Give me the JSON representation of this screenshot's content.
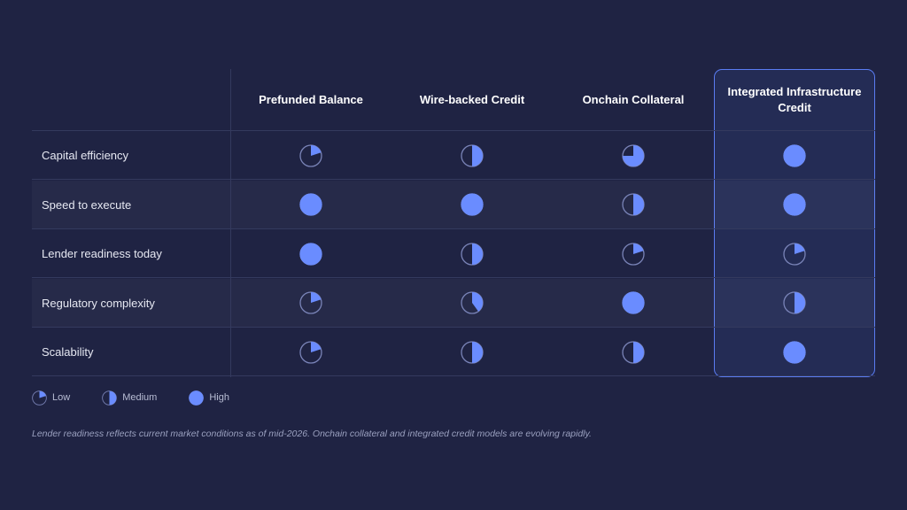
{
  "colors": {
    "background": "#1f2343",
    "accent": "#6a8cff",
    "ring": "#7a84b8",
    "highlight_border": "#5a7cf2"
  },
  "chart_data": {
    "type": "table",
    "encoding": "harvey-ball",
    "columns": [
      "Prefunded Balance",
      "Wire-backed Credit",
      "Onchain Collateral",
      "Integrated Infrastructure Credit"
    ],
    "highlighted_column": "Integrated Infrastructure Credit",
    "rows": [
      {
        "label": "Capital efficiency",
        "values": [
          0.2,
          0.5,
          0.75,
          1
        ]
      },
      {
        "label": "Speed to execute",
        "values": [
          1,
          1,
          0.5,
          1
        ]
      },
      {
        "label": "Lender readiness today",
        "values": [
          1,
          0.5,
          0.2,
          0.2
        ]
      },
      {
        "label": "Regulatory complexity",
        "values": [
          0.2,
          0.4,
          1,
          0.5
        ]
      },
      {
        "label": "Scalability",
        "values": [
          0.2,
          0.5,
          0.5,
          1
        ]
      }
    ],
    "legend": [
      {
        "label": "Low",
        "value": 0.2
      },
      {
        "label": "Medium",
        "value": 0.5
      },
      {
        "label": "High",
        "value": 1
      }
    ]
  },
  "footnote": "Lender readiness reflects current market conditions as of mid-2026. Onchain collateral and integrated credit models are evolving rapidly."
}
